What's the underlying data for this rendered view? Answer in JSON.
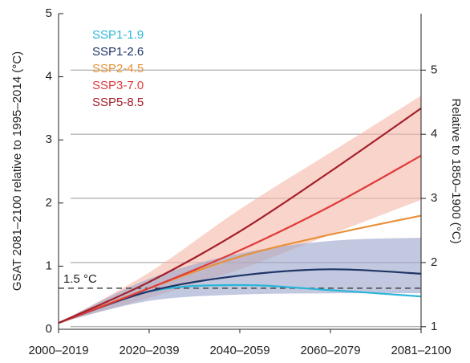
{
  "chart_data": {
    "type": "line",
    "ylabel": "GSAT 2081–2100 relative to 1995–2014 (°C)",
    "y2label": "Relative to 1850–1900 (°C)",
    "categories": [
      "2000–2019",
      "2020–2039",
      "2040–2059",
      "2060–2079",
      "2081–2100"
    ],
    "ylim": [
      0,
      5
    ],
    "yticks": [
      0,
      1,
      2,
      3,
      4,
      5
    ],
    "y2lim": [
      0.96,
      5.88
    ],
    "y2ticks": [
      1,
      2,
      3,
      4,
      5
    ],
    "grid": true,
    "legend": "upper left",
    "bands": [
      {
        "color": "#f5b7a8",
        "lower": [
          0.1,
          0.5,
          0.95,
          1.5,
          2.05
        ],
        "upper": [
          0.1,
          0.9,
          1.9,
          2.8,
          3.7
        ]
      },
      {
        "color": "#9aa3c9",
        "lower": [
          0.1,
          0.45,
          0.55,
          0.57,
          0.57
        ],
        "upper": [
          0.1,
          0.8,
          1.2,
          1.4,
          1.45
        ]
      }
    ],
    "series": [
      {
        "name": "SSP1-1.9",
        "color": "#2bb5d9",
        "values": [
          0.1,
          0.6,
          0.7,
          0.62,
          0.52
        ]
      },
      {
        "name": "SSP1-2.6",
        "color": "#1e3566",
        "values": [
          0.1,
          0.6,
          0.85,
          0.95,
          0.88
        ]
      },
      {
        "name": "SSP2-4.5",
        "color": "#e8913a",
        "values": [
          0.1,
          0.65,
          1.15,
          1.5,
          1.8
        ]
      },
      {
        "name": "SSP3-7.0",
        "color": "#e03b3b",
        "values": [
          0.1,
          0.65,
          1.25,
          1.95,
          2.75
        ]
      },
      {
        "name": "SSP5-8.5",
        "color": "#a3202a",
        "values": [
          0.1,
          0.75,
          1.55,
          2.5,
          3.5
        ]
      }
    ],
    "reference_line": {
      "label": "1.5 °C",
      "value": 0.65
    }
  }
}
